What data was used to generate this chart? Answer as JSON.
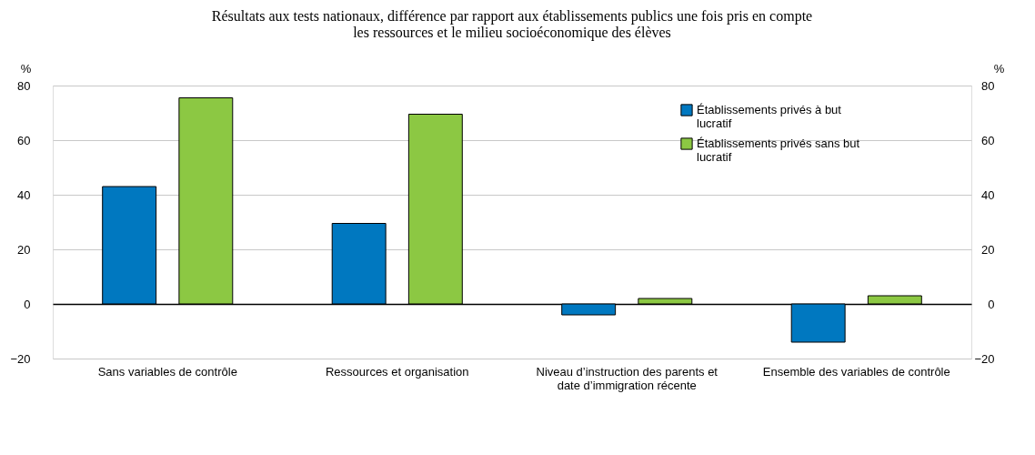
{
  "chart_data": {
    "type": "bar",
    "title": "Résultats aux tests nationaux, différence par rapport aux établissements publics une fois pris en compte les ressources et le milieu socioéconomique des élèves",
    "ylabel": "%",
    "y2label": "%",
    "categories": [
      "Sans variables de contrôle",
      "Ressources et organisation",
      "Niveau d’instruction des parents et date d’immigration récente",
      "Ensemble des variables de contrôle"
    ],
    "series": [
      {
        "name": "Établissements privés à but lucratif",
        "color": "#0078c0",
        "values": [
          43,
          29.5,
          -4,
          -14
        ]
      },
      {
        "name": "Établissements privés sans but lucratif",
        "color": "#8cc843",
        "values": [
          75.5,
          69.5,
          2,
          3
        ]
      }
    ],
    "ylim": [
      -20,
      80
    ],
    "yticks": [
      -20,
      0,
      20,
      40,
      60,
      80
    ],
    "y2lim": [
      -20,
      80
    ],
    "y2ticks": [
      -20,
      0,
      20,
      40,
      60,
      80
    ],
    "grid": "y",
    "legend": "top right"
  }
}
